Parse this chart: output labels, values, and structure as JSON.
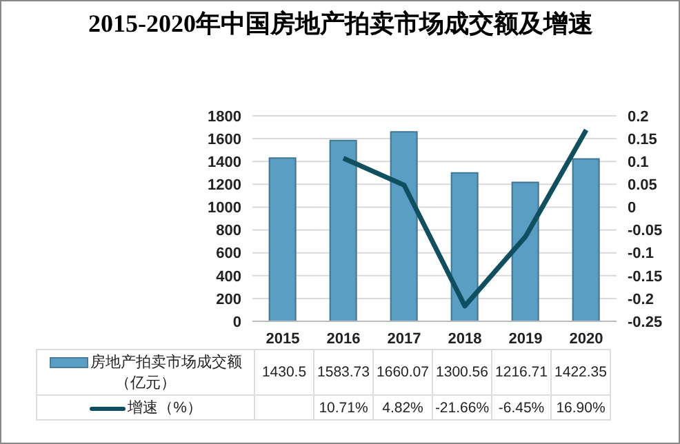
{
  "chart_data": {
    "type": "bar",
    "title": "2015-2020年中国房地产拍卖市场成交额及增速",
    "categories": [
      "2015",
      "2016",
      "2017",
      "2018",
      "2019",
      "2020"
    ],
    "series": [
      {
        "name": "房地产拍卖市场成交额（亿元）",
        "color": "#5a9ec4",
        "values": [
          1430.5,
          1583.73,
          1660.07,
          1300.56,
          1216.71,
          1422.35
        ],
        "value_labels": [
          "1430.5",
          "1583.73",
          "1660.07",
          "1300.56",
          "1216.71",
          "1422.35"
        ]
      },
      {
        "name": "增速（%）",
        "type": "line",
        "axis": "y2",
        "color": "#0f4f60",
        "values": [
          null,
          0.1071,
          0.0482,
          -0.2166,
          -0.0645,
          0.169
        ],
        "value_labels": [
          null,
          "10.71%",
          "4.82%",
          "-21.66%",
          "-6.45%",
          "16.90%"
        ]
      }
    ],
    "ylim": [
      0,
      1800
    ],
    "yticks": [
      0,
      200,
      400,
      600,
      800,
      1000,
      1200,
      1400,
      1600,
      1800
    ],
    "y2lim": [
      -0.25,
      0.2
    ],
    "y2ticks": [
      -0.25,
      -0.2,
      -0.15,
      -0.1,
      -0.05,
      0,
      0.05,
      0.1,
      0.15,
      0.2
    ],
    "grid": "y",
    "legend": "bottom",
    "marker": "none"
  }
}
